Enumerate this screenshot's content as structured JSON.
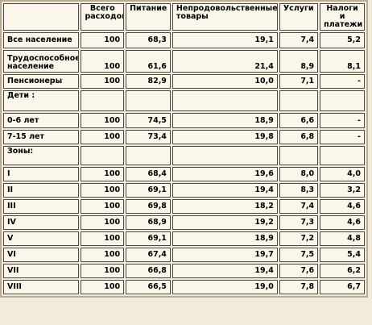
{
  "header": {
    "col0": "",
    "col1": "Всего расходов",
    "col2": "Питание",
    "col3": "Непродовольственные товары",
    "col4": "Услуги",
    "col5": "Налоги и платежи"
  },
  "rows": [
    {
      "label": "Все население",
      "total": "100",
      "food": "68,3",
      "nonfood": "19,1",
      "services": "7,4",
      "taxes": "5,2"
    },
    {
      "label": "Трудоспособное население",
      "total": "100",
      "food": "61,6",
      "nonfood": "21,4",
      "services": "8,9",
      "taxes": "8,1"
    },
    {
      "label": "Пенсионеры",
      "total": "100",
      "food": "82,9",
      "nonfood": "10,0",
      "services": "7,1",
      "taxes": "-"
    },
    {
      "label": "Дети :",
      "total": "",
      "food": "",
      "nonfood": "",
      "services": "",
      "taxes": ""
    },
    {
      "label": "0-6 лет",
      "total": "100",
      "food": "74,5",
      "nonfood": "18,9",
      "services": "6,6",
      "taxes": "-"
    },
    {
      "label": "7-15 лет",
      "total": "100",
      "food": "73,4",
      "nonfood": "19,8",
      "services": "6,8",
      "taxes": "-"
    },
    {
      "label": "Зоны:",
      "total": "",
      "food": "",
      "nonfood": "",
      "services": "",
      "taxes": ""
    },
    {
      "label": "I",
      "total": "100",
      "food": "68,4",
      "nonfood": "19,6",
      "services": "8,0",
      "taxes": "4,0"
    },
    {
      "label": "II",
      "total": "100",
      "food": "69,1",
      "nonfood": "19,4",
      "services": "8,3",
      "taxes": "3,2"
    },
    {
      "label": "III",
      "total": "100",
      "food": "69,8",
      "nonfood": "18,2",
      "services": "7,4",
      "taxes": "4,6"
    },
    {
      "label": "IV",
      "total": "100",
      "food": "68,9",
      "nonfood": "19,2",
      "services": "7,3",
      "taxes": "4,6"
    },
    {
      "label": "V",
      "total": "100",
      "food": "69,1",
      "nonfood": "18,9",
      "services": "7,2",
      "taxes": "4,8"
    },
    {
      "label": "VI",
      "total": "100",
      "food": "67,4",
      "nonfood": "19,7",
      "services": "7,5",
      "taxes": "5,4"
    },
    {
      "label": "VII",
      "total": "100",
      "food": "66,8",
      "nonfood": "19,4",
      "services": "7,6",
      "taxes": "6,2"
    },
    {
      "label": "VIII",
      "total": "100",
      "food": "66,5",
      "nonfood": "19,0",
      "services": "7,8",
      "taxes": "6,7"
    }
  ]
}
